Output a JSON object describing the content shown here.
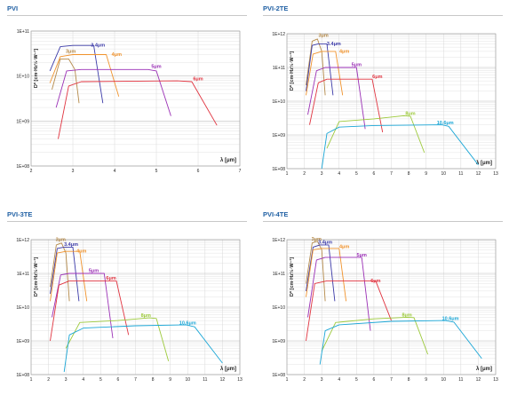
{
  "colors": {
    "title": "#1f5fa3",
    "3um": "#b58a4a",
    "3.4um": "#3b3aa8",
    "4um": "#f0922b",
    "5um": "#9a2fb5",
    "6um": "#e0333f",
    "8um": "#9cc93a",
    "10.6um": "#1aa6d6"
  },
  "chart_data": [
    {
      "type": "line",
      "title": "PVI",
      "ylabel": "D* [cm·Hz½·W⁻¹]",
      "xlabel": "λ [μm]",
      "yscale": "log",
      "xlim": [
        2,
        7
      ],
      "ylim": [
        100000000.0,
        100000000000.0
      ],
      "xticks": [
        "2",
        "3",
        "4",
        "5",
        "6",
        "7"
      ],
      "yticks": [
        "1E+08",
        "1E+09",
        "1E+10",
        "1E+11"
      ],
      "series": [
        {
          "name": "3μm",
          "color": "#b58a4a",
          "x": [
            2.5,
            2.7,
            2.9,
            3.05,
            3.15
          ],
          "y": [
            5000000000.0,
            24000000000.0,
            24000000000.0,
            14000000000.0,
            2500000000.0
          ],
          "label_at": [
            2.95,
            33000000000.0
          ]
        },
        {
          "name": "3.4μm",
          "color": "#3b3aa8",
          "x": [
            2.45,
            2.7,
            3.0,
            3.5,
            3.72
          ],
          "y": [
            13000000000.0,
            45000000000.0,
            48000000000.0,
            48000000000.0,
            2500000000.0
          ],
          "label_at": [
            3.6,
            45000000000.0
          ]
        },
        {
          "name": "4μm",
          "color": "#f0922b",
          "x": [
            2.45,
            2.7,
            3.0,
            3.8,
            4.1
          ],
          "y": [
            7000000000.0,
            27000000000.0,
            30000000000.0,
            30000000000.0,
            3500000000.0
          ],
          "label_at": [
            4.05,
            28000000000.0
          ]
        },
        {
          "name": "5μm",
          "color": "#9a2fb5",
          "x": [
            2.6,
            2.85,
            3.2,
            4.8,
            5.0,
            5.35
          ],
          "y": [
            2000000000.0,
            13000000000.0,
            14000000000.0,
            14000000000.0,
            13000000000.0,
            1300000000.0
          ],
          "label_at": [
            5.0,
            15000000000.0
          ]
        },
        {
          "name": "6μm",
          "color": "#e0333f",
          "x": [
            2.65,
            2.9,
            3.2,
            5.5,
            5.85,
            6.45
          ],
          "y": [
            400000000.0,
            6000000000.0,
            7500000000.0,
            7800000000.0,
            7500000000.0,
            800000000.0
          ],
          "label_at": [
            6.0,
            8000000000.0
          ]
        }
      ]
    },
    {
      "type": "line",
      "title": "PVI-2TE",
      "ylabel": "D* [cm·Hz½·W⁻¹]",
      "xlabel": "λ [μm]",
      "yscale": "log",
      "xlim": [
        1,
        13
      ],
      "ylim": [
        100000000.0,
        1000000000000.0
      ],
      "xticks": [
        "1",
        "2",
        "3",
        "4",
        "5",
        "6",
        "7",
        "8",
        "9",
        "10",
        "11",
        "12",
        "13"
      ],
      "yticks": [
        "1E+08",
        "1E+09",
        "1E+10",
        "1E+11",
        "1E+12"
      ],
      "series": [
        {
          "name": "3μm",
          "color": "#b58a4a",
          "x": [
            2.1,
            2.45,
            2.75,
            3.0,
            3.2
          ],
          "y": [
            30000000000.0,
            600000000000.0,
            700000000000.0,
            300000000000.0,
            15000000000.0
          ],
          "label_at": [
            3.1,
            820000000000.0
          ]
        },
        {
          "name": "3.4μm",
          "color": "#3b3aa8",
          "x": [
            2.1,
            2.45,
            2.8,
            3.3,
            3.65
          ],
          "y": [
            20000000000.0,
            450000000000.0,
            500000000000.0,
            500000000000.0,
            15000000000.0
          ],
          "label_at": [
            3.7,
            460000000000.0
          ]
        },
        {
          "name": "4μm",
          "color": "#f0922b",
          "x": [
            2.1,
            2.5,
            3.0,
            3.8,
            4.2
          ],
          "y": [
            15000000000.0,
            250000000000.0,
            300000000000.0,
            300000000000.0,
            15000000000.0
          ],
          "label_at": [
            4.3,
            270000000000.0
          ]
        },
        {
          "name": "5μm",
          "color": "#9a2fb5",
          "x": [
            2.2,
            2.7,
            3.2,
            4.6,
            5.0,
            5.5
          ],
          "y": [
            4000000000.0,
            80000000000.0,
            100000000000.0,
            100000000000.0,
            100000000000.0,
            1500000000.0
          ],
          "label_at": [
            5.0,
            110000000000.0
          ]
        },
        {
          "name": "6μm",
          "color": "#e0333f",
          "x": [
            2.3,
            2.8,
            3.3,
            5.4,
            5.9,
            6.5
          ],
          "y": [
            2000000000.0,
            35000000000.0,
            45000000000.0,
            45000000000.0,
            45000000000.0,
            1200000000.0
          ],
          "label_at": [
            6.2,
            48000000000.0
          ]
        },
        {
          "name": "8μm",
          "color": "#9cc93a",
          "x": [
            3.3,
            4.0,
            6.0,
            7.7,
            8.1,
            8.9
          ],
          "y": [
            400000000.0,
            2500000000.0,
            3000000000.0,
            3700000000.0,
            3600000000.0,
            300000000.0
          ],
          "label_at": [
            8.1,
            3900000000.0
          ]
        },
        {
          "name": "10.6μm",
          "color": "#1aa6d6",
          "x": [
            3.0,
            3.3,
            4.0,
            6.0,
            9.9,
            10.3,
            12.0
          ],
          "y": [
            100000000.0,
            1100000000.0,
            1700000000.0,
            1900000000.0,
            2000000000.0,
            1800000000.0,
            130000000.0
          ],
          "label_at": [
            10.1,
            2100000000.0
          ]
        }
      ]
    },
    {
      "type": "line",
      "title": "PVI-3TE",
      "ylabel": "D* [cm·Hz½·W⁻¹]",
      "xlabel": "λ [μm]",
      "yscale": "log",
      "xlim": [
        1,
        13
      ],
      "ylim": [
        100000000.0,
        1000000000000.0
      ],
      "xticks": [
        "1",
        "2",
        "3",
        "4",
        "5",
        "6",
        "7",
        "8",
        "9",
        "10",
        "11",
        "12",
        "13"
      ],
      "yticks": [
        "1E+08",
        "1E+09",
        "1E+10",
        "1E+11",
        "1E+12"
      ],
      "series": [
        {
          "name": "3μm",
          "color": "#b58a4a",
          "x": [
            2.1,
            2.45,
            2.75,
            3.0,
            3.2
          ],
          "y": [
            40000000000.0,
            700000000000.0,
            800000000000.0,
            400000000000.0,
            15000000000.0
          ],
          "label_at": [
            2.7,
            900000000000.0
          ]
        },
        {
          "name": "3.4μm",
          "color": "#3b3aa8",
          "x": [
            2.1,
            2.5,
            2.9,
            3.4,
            3.75
          ],
          "y": [
            25000000000.0,
            550000000000.0,
            600000000000.0,
            600000000000.0,
            15000000000.0
          ],
          "label_at": [
            3.3,
            650000000000.0
          ]
        },
        {
          "name": "4μm",
          "color": "#f0922b",
          "x": [
            2.1,
            2.5,
            3.0,
            3.8,
            4.2
          ],
          "y": [
            15000000000.0,
            400000000000.0,
            450000000000.0,
            450000000000.0,
            15000000000.0
          ],
          "label_at": [
            3.9,
            420000000000.0
          ]
        },
        {
          "name": "5μm",
          "color": "#9a2fb5",
          "x": [
            2.2,
            2.7,
            3.2,
            4.7,
            5.2,
            5.7
          ],
          "y": [
            5000000000.0,
            90000000000.0,
            100000000000.0,
            100000000000.0,
            100000000000.0,
            1200000000.0
          ],
          "label_at": [
            4.6,
            110000000000.0
          ]
        },
        {
          "name": "6μm",
          "color": "#e0333f",
          "x": [
            2.1,
            2.6,
            3.2,
            5.4,
            5.9,
            6.6
          ],
          "y": [
            1000000000.0,
            45000000000.0,
            60000000000.0,
            60000000000.0,
            60000000000.0,
            1500000000.0
          ],
          "label_at": [
            5.6,
            65000000000.0
          ]
        },
        {
          "name": "8μm",
          "color": "#9cc93a",
          "x": [
            3.0,
            3.8,
            6.0,
            7.8,
            8.2,
            8.9
          ],
          "y": [
            600000000.0,
            3500000000.0,
            4000000000.0,
            4800000000.0,
            4600000000.0,
            250000000.0
          ],
          "label_at": [
            7.6,
            5200000000.0
          ]
        },
        {
          "name": "10.6μm",
          "color": "#1aa6d6",
          "x": [
            2.9,
            3.2,
            4.0,
            7.0,
            9.9,
            10.4,
            12.0
          ],
          "y": [
            120000000.0,
            1500000000.0,
            2400000000.0,
            2800000000.0,
            3000000000.0,
            2600000000.0,
            220000000.0
          ],
          "label_at": [
            10.0,
            3100000000.0
          ]
        }
      ]
    },
    {
      "type": "line",
      "title": "PVI-4TE",
      "ylabel": "D* [cm·Hz½·W⁻¹]",
      "xlabel": "λ [μm]",
      "yscale": "log",
      "xlim": [
        1,
        13
      ],
      "ylim": [
        100000000.0,
        1000000000000.0
      ],
      "xticks": [
        "1",
        "2",
        "3",
        "4",
        "5",
        "6",
        "7",
        "8",
        "9",
        "10",
        "11",
        "12",
        "13"
      ],
      "yticks": [
        "1E+08",
        "1E+09",
        "1E+10",
        "1E+11",
        "1E+12"
      ],
      "series": [
        {
          "name": "3μm",
          "color": "#b58a4a",
          "x": [
            2.1,
            2.45,
            2.75,
            3.0,
            3.2
          ],
          "y": [
            50000000000.0,
            800000000000.0,
            900000000000.0,
            500000000000.0,
            15000000000.0
          ],
          "label_at": [
            2.7,
            950000000000.0
          ]
        },
        {
          "name": "3.4μm",
          "color": "#3b3aa8",
          "x": [
            2.1,
            2.5,
            2.9,
            3.4,
            3.75
          ],
          "y": [
            30000000000.0,
            600000000000.0,
            700000000000.0,
            700000000000.0,
            15000000000.0
          ],
          "label_at": [
            3.2,
            750000000000.0
          ]
        },
        {
          "name": "4μm",
          "color": "#f0922b",
          "x": [
            2.1,
            2.5,
            3.0,
            4.0,
            4.4
          ],
          "y": [
            20000000000.0,
            500000000000.0,
            550000000000.0,
            550000000000.0,
            15000000000.0
          ],
          "label_at": [
            4.3,
            560000000000.0
          ]
        },
        {
          "name": "5μm",
          "color": "#9a2fb5",
          "x": [
            2.2,
            2.7,
            3.2,
            4.9,
            5.3,
            5.8
          ],
          "y": [
            5000000000.0,
            250000000000.0,
            300000000000.0,
            300000000000.0,
            300000000000.0,
            2000000000.0
          ],
          "label_at": [
            5.3,
            320000000000.0
          ]
        },
        {
          "name": "6μm",
          "color": "#e0333f",
          "x": [
            2.1,
            2.6,
            3.3,
            5.6,
            6.1,
            7.0
          ],
          "y": [
            1000000000.0,
            50000000000.0,
            60000000000.0,
            60000000000.0,
            60000000000.0,
            4000000000.0
          ],
          "label_at": [
            6.1,
            55000000000.0
          ]
        },
        {
          "name": "8μm",
          "color": "#9cc93a",
          "x": [
            3.0,
            3.8,
            6.0,
            7.9,
            8.3,
            9.1
          ],
          "y": [
            500000000.0,
            3500000000.0,
            4500000000.0,
            5000000000.0,
            4900000000.0,
            400000000.0
          ],
          "label_at": [
            7.9,
            5300000000.0
          ]
        },
        {
          "name": "10.6μm",
          "color": "#1aa6d6",
          "x": [
            2.9,
            3.2,
            4.0,
            7.0,
            10.1,
            10.6,
            12.2
          ],
          "y": [
            200000000.0,
            2000000000.0,
            3000000000.0,
            3800000000.0,
            4000000000.0,
            3600000000.0,
            300000000.0
          ],
          "label_at": [
            10.4,
            4200000000.0
          ]
        }
      ]
    }
  ]
}
